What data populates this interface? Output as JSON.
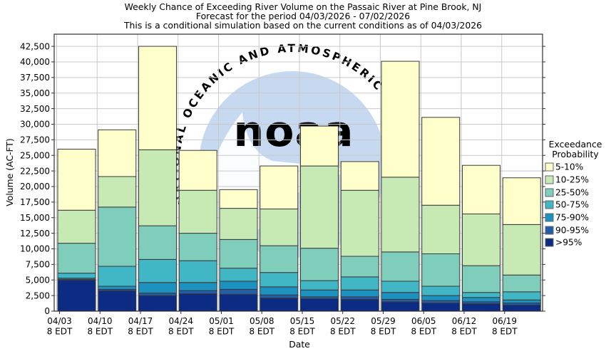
{
  "title": {
    "line1": "Weekly Chance of Exceeding River Volume on the Passaic River at Pine Brook, NJ",
    "line2": "Forecast for the period 04/03/2026 - 07/02/2026",
    "line3": "This is a conditional simulation based on the current conditions as of 04/03/2026"
  },
  "y_axis": {
    "label": "Volume (AC-FT)",
    "tick_labels": [
      "0",
      "2,500",
      "5,000",
      "7,500",
      "10,000",
      "12,500",
      "15,000",
      "17,500",
      "20,000",
      "22,500",
      "25,000",
      "27,500",
      "30,000",
      "32,500",
      "35,000",
      "37,500",
      "40,000",
      "42,500"
    ]
  },
  "x_axis": {
    "label": "Date"
  },
  "legend": {
    "title_line1": "Exceedance",
    "title_line2": "Probability",
    "items": [
      {
        "label": "5-10%",
        "color": "#ffffcc"
      },
      {
        "label": "10-25%",
        "color": "#c7e9b4"
      },
      {
        "label": "25-50%",
        "color": "#7fcdbb"
      },
      {
        "label": "50-75%",
        "color": "#41b6c4"
      },
      {
        "label": "75-90%",
        "color": "#1d91c0"
      },
      {
        "label": "90-95%",
        "color": "#225ea8"
      },
      {
        "label": ">95%",
        "color": "#0c2c84"
      }
    ]
  },
  "watermark": {
    "logo_text": "noaa",
    "ring_text": "NATIONAL OCEANIC AND ATMOSPHERIC ADMINISTRATION"
  },
  "chart_data": {
    "type": "bar",
    "stacked": true,
    "title": "Weekly Chance of Exceeding River Volume on the Passaic River at Pine Brook, NJ",
    "xlabel": "Date",
    "ylabel": "Volume (AC-FT)",
    "ylim": [
      0,
      44450
    ],
    "ytick_step": 2500,
    "grid": true,
    "legend_position": "right",
    "categories": [
      {
        "date": "04/03",
        "time": "8 EDT"
      },
      {
        "date": "04/10",
        "time": "8 EDT"
      },
      {
        "date": "04/17",
        "time": "8 EDT"
      },
      {
        "date": "04/24",
        "time": "8 EDT"
      },
      {
        "date": "05/01",
        "time": "8 EDT"
      },
      {
        "date": "05/08",
        "time": "8 EDT"
      },
      {
        "date": "05/15",
        "time": "8 EDT"
      },
      {
        "date": "05/22",
        "time": "8 EDT"
      },
      {
        "date": "05/29",
        "time": "8 EDT"
      },
      {
        "date": "06/05",
        "time": "8 EDT"
      },
      {
        "date": "06/12",
        "time": "8 EDT"
      },
      {
        "date": "06/19",
        "time": "8 EDT"
      }
    ],
    "series": [
      {
        "key": "gt95",
        "name": ">95%",
        "color": "#0c2c84",
        "values": [
          5000,
          3300,
          2500,
          2800,
          2700,
          2100,
          2000,
          1900,
          1500,
          1300,
          1200,
          1000
        ]
      },
      {
        "key": "p90_95",
        "name": "90-95%",
        "color": "#225ea8",
        "values": [
          100,
          200,
          400,
          500,
          800,
          500,
          300,
          400,
          400,
          400,
          300,
          300
        ]
      },
      {
        "key": "p75_90",
        "name": "75-90%",
        "color": "#1d91c0",
        "values": [
          200,
          500,
          1700,
          1300,
          1300,
          1300,
          1100,
          1100,
          1100,
          800,
          700,
          500
        ]
      },
      {
        "key": "p50_75",
        "name": "50-75%",
        "color": "#41b6c4",
        "values": [
          800,
          3200,
          3700,
          3500,
          2100,
          2300,
          1500,
          2100,
          1800,
          1500,
          800,
          1300
        ]
      },
      {
        "key": "p25_50",
        "name": "25-50%",
        "color": "#7fcdbb",
        "values": [
          4800,
          9500,
          5400,
          4400,
          4600,
          4300,
          5200,
          3300,
          4700,
          5200,
          4300,
          2700
        ]
      },
      {
        "key": "p10_25",
        "name": "10-25%",
        "color": "#c7e9b4",
        "values": [
          5300,
          4900,
          12200,
          6900,
          5000,
          5900,
          13200,
          10600,
          12000,
          7800,
          8300,
          8100
        ]
      },
      {
        "key": "p5_10",
        "name": "5-10%",
        "color": "#ffffcc",
        "values": [
          9800,
          7500,
          16600,
          6400,
          3000,
          6900,
          6400,
          4600,
          18600,
          14100,
          7800,
          7500
        ]
      }
    ],
    "totals": [
      26000,
      29100,
      42500,
      25800,
      19500,
      23300,
      29700,
      24000,
      40100,
      31100,
      23400,
      21400
    ]
  }
}
